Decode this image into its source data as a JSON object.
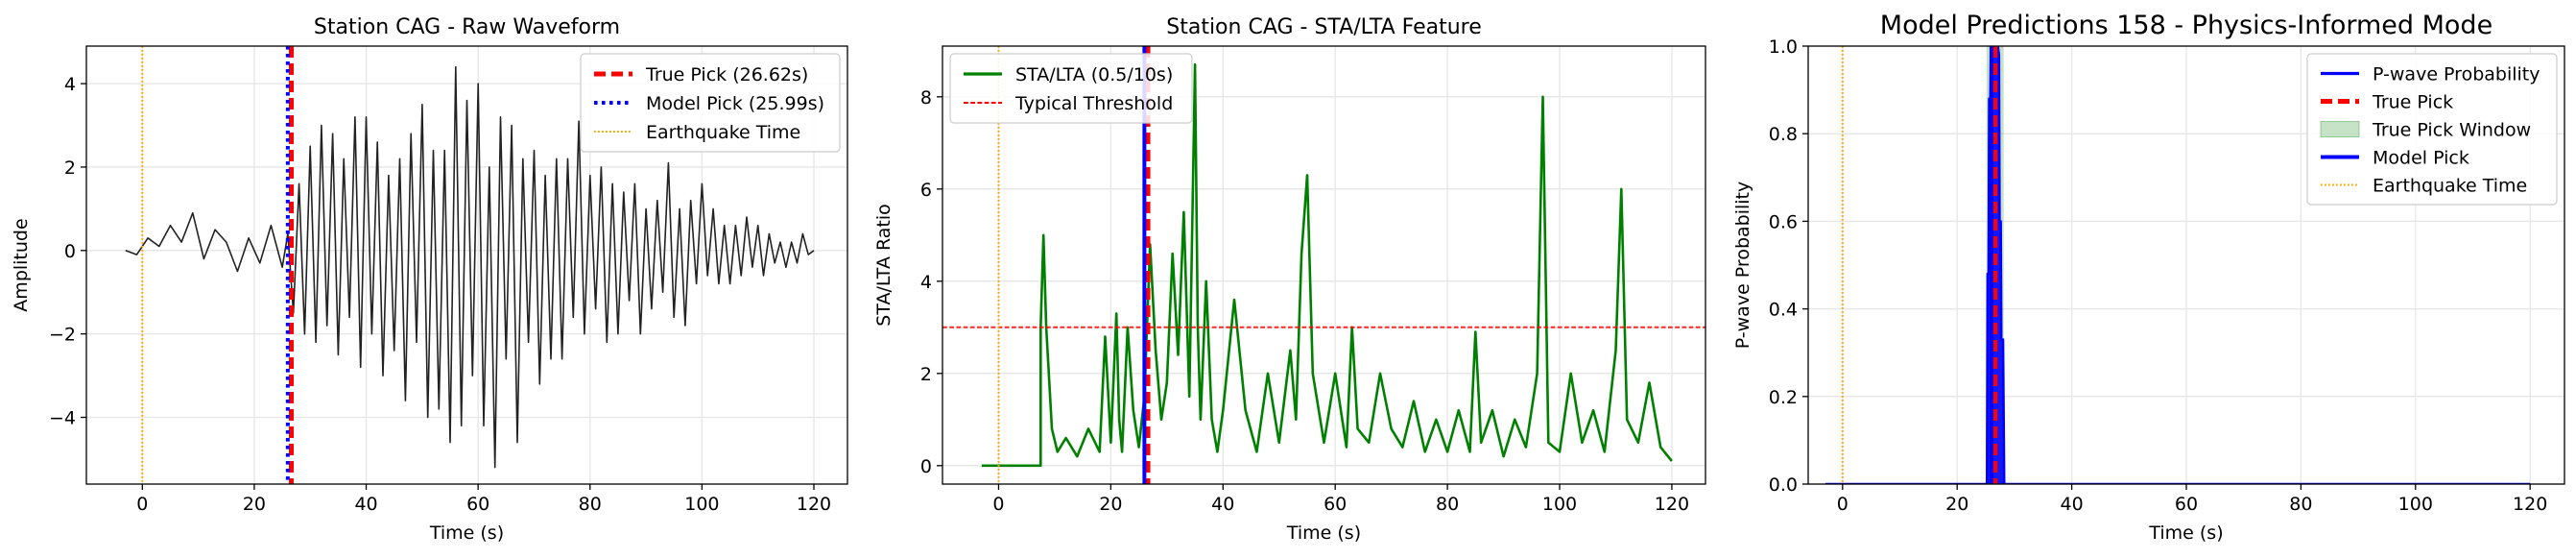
{
  "chart_data": [
    {
      "type": "line",
      "title": "Station CAG - Raw Waveform",
      "xlabel": "Time (s)",
      "ylabel": "Amplitude",
      "xlim": [
        -10,
        126
      ],
      "ylim": [
        -5.6,
        4.9
      ],
      "xticks": [
        0,
        20,
        40,
        60,
        80,
        100,
        120
      ],
      "yticks": [
        -4,
        -2,
        0,
        2,
        4
      ],
      "ytick_labels": [
        "−4",
        "−2",
        "0",
        "2",
        "4"
      ],
      "grid": true,
      "legend_position": "top-right",
      "series": [
        {
          "name": "",
          "kind": "waveform",
          "color": "#222222",
          "x": [
            -3,
            -1,
            1,
            3,
            5,
            7,
            9,
            11,
            13,
            15,
            17,
            19,
            21,
            23,
            25,
            26,
            27,
            28,
            29,
            30,
            31,
            32,
            33,
            34,
            35,
            36,
            37,
            38,
            39,
            40,
            41,
            42,
            43,
            44,
            45,
            46,
            47,
            48,
            49,
            50,
            51,
            52,
            53,
            54,
            55,
            56,
            57,
            58,
            59,
            60,
            61,
            62,
            63,
            64,
            65,
            66,
            67,
            68,
            69,
            70,
            71,
            72,
            73,
            74,
            75,
            76,
            77,
            78,
            79,
            80,
            81,
            82,
            83,
            84,
            85,
            86,
            87,
            88,
            89,
            90,
            91,
            92,
            93,
            94,
            95,
            96,
            97,
            98,
            99,
            100,
            101,
            102,
            103,
            104,
            105,
            106,
            107,
            108,
            109,
            110,
            111,
            112,
            113,
            114,
            115,
            116,
            117,
            118,
            119,
            120
          ],
          "y": [
            0,
            -0.1,
            0.3,
            0.1,
            0.6,
            0.2,
            0.9,
            -0.2,
            0.5,
            0.2,
            -0.5,
            0.3,
            -0.3,
            0.6,
            -0.4,
            0.4,
            -1.5,
            1.6,
            -2.0,
            2.5,
            -2.2,
            3.0,
            -1.8,
            2.8,
            -2.5,
            2.2,
            -1.6,
            3.2,
            -2.8,
            3.2,
            -2.0,
            2.6,
            -3.0,
            1.8,
            -2.4,
            2.2,
            -3.6,
            2.8,
            -2.2,
            3.5,
            -4.0,
            2.4,
            -3.8,
            2.4,
            -4.6,
            4.4,
            -4.2,
            3.6,
            -3.0,
            4.0,
            -4.2,
            2.0,
            -5.2,
            3.2,
            -2.6,
            3.0,
            -4.6,
            2.2,
            -2.2,
            2.4,
            -3.2,
            1.8,
            -2.6,
            2.2,
            -2.6,
            2.2,
            -1.6,
            3.1,
            -2.0,
            1.8,
            -1.4,
            2.0,
            -2.2,
            1.6,
            -2.0,
            1.4,
            -1.2,
            1.6,
            -2.0,
            1.0,
            -1.4,
            1.2,
            -1.0,
            2.1,
            -1.6,
            1.0,
            -1.8,
            1.2,
            -0.8,
            1.6,
            -0.6,
            1.0,
            -0.8,
            0.6,
            -0.8,
            0.6,
            -0.6,
            0.8,
            -0.4,
            0.6,
            -0.6,
            0.4,
            -0.3,
            0.2,
            -0.4,
            0.2,
            -0.3,
            0.4,
            -0.1,
            0
          ]
        },
        {
          "name": "True Pick (26.62s)",
          "kind": "vline",
          "x": 26.62,
          "color": "#ff0000",
          "style": "dashed",
          "width": 5
        },
        {
          "name": "Model Pick (25.99s)",
          "kind": "vline",
          "x": 25.99,
          "color": "#0000ff",
          "style": "dotted",
          "width": 4
        },
        {
          "name": "Earthquake Time",
          "kind": "vline",
          "x": 0,
          "color": "#ffa500",
          "style": "dotted",
          "width": 2
        }
      ]
    },
    {
      "type": "line",
      "title": "Station CAG - STA/LTA Feature",
      "xlabel": "Time (s)",
      "ylabel": "STA/LTA Ratio",
      "xlim": [
        -10,
        126
      ],
      "ylim": [
        -0.4,
        9.1
      ],
      "xticks": [
        0,
        20,
        40,
        60,
        80,
        100,
        120
      ],
      "yticks": [
        0,
        2,
        4,
        6,
        8
      ],
      "grid": true,
      "legend_position": "top-left",
      "series": [
        {
          "name": "STA/LTA (0.5/10s)",
          "kind": "line",
          "color": "#008000",
          "x": [
            -3,
            7.5,
            7.5,
            8,
            8.5,
            9.5,
            10.5,
            12,
            14,
            16,
            18,
            19,
            20,
            21,
            21.5,
            22,
            23,
            24,
            25,
            26,
            27,
            28,
            29,
            30,
            31,
            32,
            33,
            34,
            35,
            35.5,
            36,
            37,
            38,
            39,
            40,
            42,
            44,
            46,
            48,
            50,
            52,
            53,
            54,
            55,
            56,
            58,
            60,
            62,
            63,
            64,
            66,
            68,
            70,
            72,
            74,
            76,
            78,
            80,
            82,
            84,
            85,
            86,
            88,
            90,
            92,
            94,
            96,
            97,
            98,
            100,
            102,
            104,
            106,
            108,
            110,
            111,
            112,
            114,
            116,
            118,
            120
          ],
          "y": [
            0,
            0,
            3.0,
            5.0,
            3.0,
            0.8,
            0.3,
            0.6,
            0.2,
            0.8,
            0.3,
            2.8,
            0.5,
            3.3,
            1.0,
            0.3,
            3.0,
            1.2,
            0.4,
            1.5,
            4.8,
            2.5,
            1.0,
            1.8,
            4.6,
            2.4,
            5.5,
            1.5,
            8.7,
            3.0,
            1.0,
            4.0,
            1.0,
            0.3,
            1.2,
            3.6,
            1.2,
            0.3,
            2.0,
            0.5,
            2.5,
            1.0,
            4.6,
            6.3,
            2.0,
            0.5,
            2.0,
            0.4,
            3.0,
            0.8,
            0.5,
            2.0,
            0.8,
            0.4,
            1.4,
            0.3,
            1.0,
            0.3,
            1.2,
            0.3,
            2.9,
            0.5,
            1.2,
            0.2,
            1.0,
            0.4,
            2.0,
            8.0,
            0.5,
            0.3,
            2.0,
            0.5,
            1.2,
            0.3,
            2.5,
            6.0,
            1.0,
            0.5,
            1.8,
            0.4,
            0.1
          ]
        },
        {
          "name": "Typical Threshold",
          "kind": "hline",
          "y": 3,
          "color": "#ff0000",
          "style": "dashed",
          "width": 2
        },
        {
          "name": "",
          "kind": "vline",
          "x": 26.62,
          "color": "#ff0000",
          "style": "dashed",
          "width": 5
        },
        {
          "name": "",
          "kind": "vline",
          "x": 25.99,
          "color": "#0000ff",
          "style": "solid",
          "width": 4
        },
        {
          "name": "",
          "kind": "vline",
          "x": 0,
          "color": "#ffa500",
          "style": "dotted",
          "width": 2
        }
      ]
    },
    {
      "type": "line",
      "title": "Model Predictions 158 - Physics-Informed Mode",
      "xlabel": "Time (s)",
      "ylabel": "P-wave Probability",
      "xlim": [
        -6,
        126
      ],
      "ylim": [
        0,
        1
      ],
      "xticks": [
        0,
        20,
        40,
        60,
        80,
        100,
        120
      ],
      "yticks": [
        0,
        0.2,
        0.4,
        0.6,
        0.8,
        1.0
      ],
      "ytick_labels": [
        "0.0",
        "0.2",
        "0.4",
        "0.6",
        "0.8",
        "1.0"
      ],
      "grid": true,
      "legend_position": "top-right",
      "series": [
        {
          "name": "P-wave Probability",
          "kind": "line",
          "color": "#0000ff",
          "x": [
            -3,
            25.2,
            25.3,
            25.5,
            25.6,
            25.8,
            25.9,
            26.1,
            26.2,
            26.4,
            26.5,
            26.7,
            26.8,
            27.0,
            27.1,
            27.3,
            27.4,
            27.6,
            27.7,
            27.9,
            28.0,
            28.2,
            28.3,
            120
          ],
          "y": [
            0,
            0,
            0.48,
            0.48,
            0.88,
            0.88,
            1.0,
            1.0,
            1.0,
            1.0,
            1.0,
            1.0,
            1.0,
            1.0,
            1.0,
            0.98,
            0.6,
            0.6,
            0.33,
            0.33,
            0.33,
            0,
            0,
            0
          ]
        },
        {
          "name": "True Pick",
          "kind": "vline",
          "x": 26.62,
          "color": "#ff0000",
          "style": "dashed",
          "width": 5
        },
        {
          "name": "True Pick Window",
          "kind": "band",
          "x0": 25.12,
          "x1": 28.12,
          "color": "#008000"
        },
        {
          "name": "Model Pick",
          "kind": "vline",
          "x": 25.99,
          "color": "#0000ff",
          "style": "solid",
          "width": 4
        },
        {
          "name": "Earthquake Time",
          "kind": "vline",
          "x": 0,
          "color": "#ffa500",
          "style": "dotted",
          "width": 2
        }
      ]
    }
  ]
}
